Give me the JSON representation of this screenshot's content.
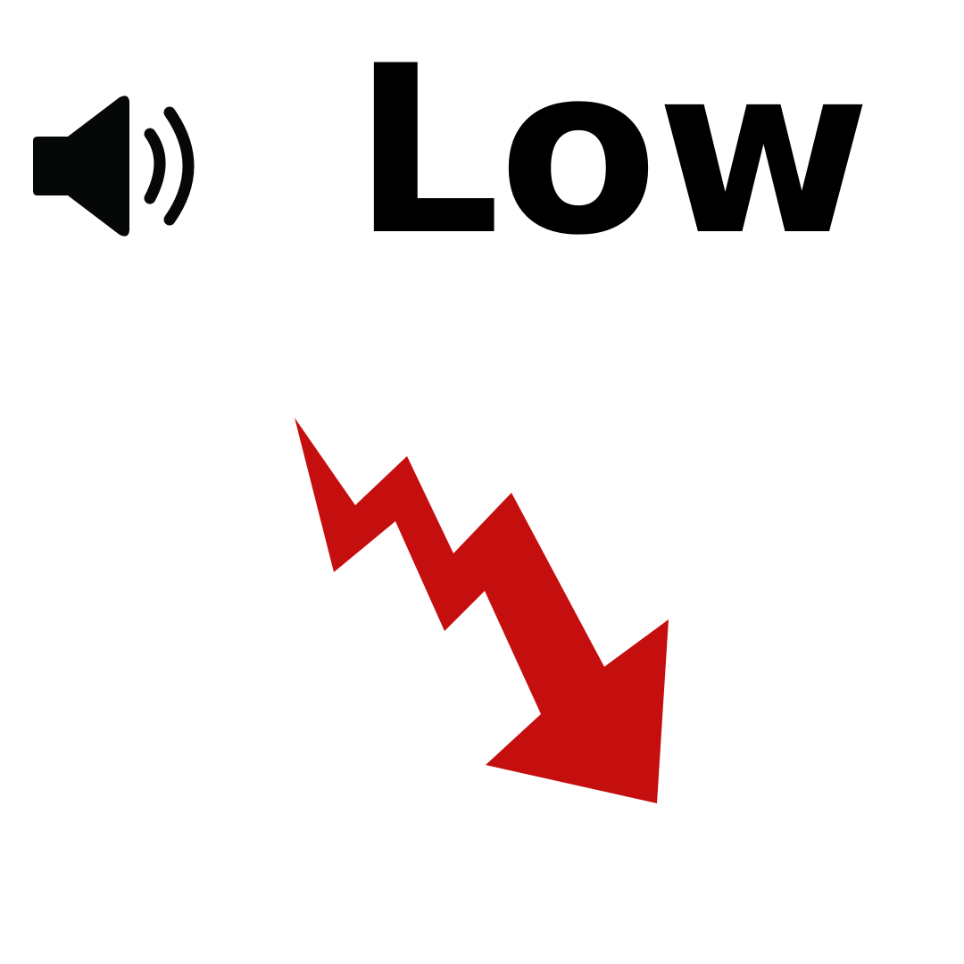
{
  "word": {
    "text": "Low",
    "color": "#000000"
  },
  "speaker": {
    "icon": "speaker-icon",
    "color": "#050807"
  },
  "arrow": {
    "icon": "downward-trend-arrow-icon",
    "color": "#C50E0E"
  }
}
